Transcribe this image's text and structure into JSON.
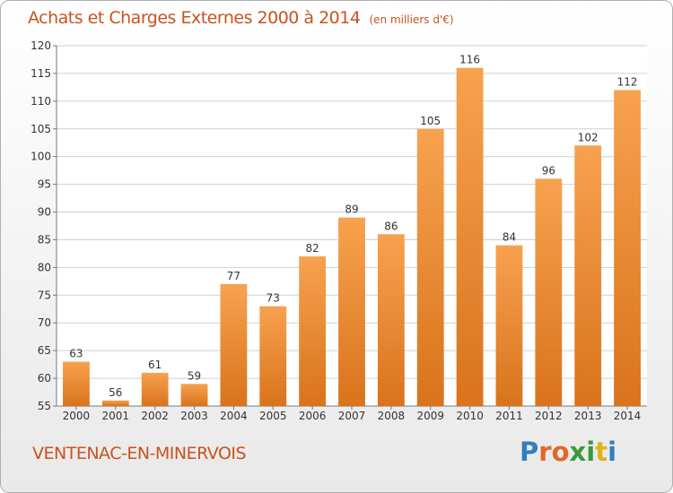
{
  "title": "Achats et Charges Externes 2000 à 2014",
  "subtitle": "(en milliers d'€)",
  "commune": "VENTENAC-EN-MINERVOIS",
  "logo_text": "Proxiti",
  "colors": {
    "accent": "#c8531e",
    "bar_light": "#f7a24f",
    "bar_dark": "#d9731c",
    "logo": [
      "#2f7fc0",
      "#e2672a",
      "#e2672a",
      "#3a9a3a",
      "#3a9a3a",
      "#e0b31a",
      "#2f7fc0"
    ]
  },
  "chart_data": {
    "type": "bar",
    "categories": [
      "2000",
      "2001",
      "2002",
      "2003",
      "2004",
      "2005",
      "2006",
      "2007",
      "2008",
      "2009",
      "2010",
      "2011",
      "2012",
      "2013",
      "2014"
    ],
    "values": [
      63,
      56,
      61,
      59,
      77,
      73,
      82,
      89,
      86,
      105,
      116,
      84,
      96,
      102,
      112
    ],
    "data_labels": [
      "63",
      "56",
      "61",
      "59",
      "77",
      "73",
      "82",
      "89",
      "86",
      "105",
      "116",
      "84",
      "96",
      "102",
      "112"
    ],
    "ylim": [
      55,
      120
    ],
    "yticks": [
      55,
      60,
      65,
      70,
      75,
      80,
      85,
      90,
      95,
      100,
      105,
      110,
      115,
      120
    ],
    "grid": true,
    "xlabel": "",
    "ylabel": ""
  }
}
